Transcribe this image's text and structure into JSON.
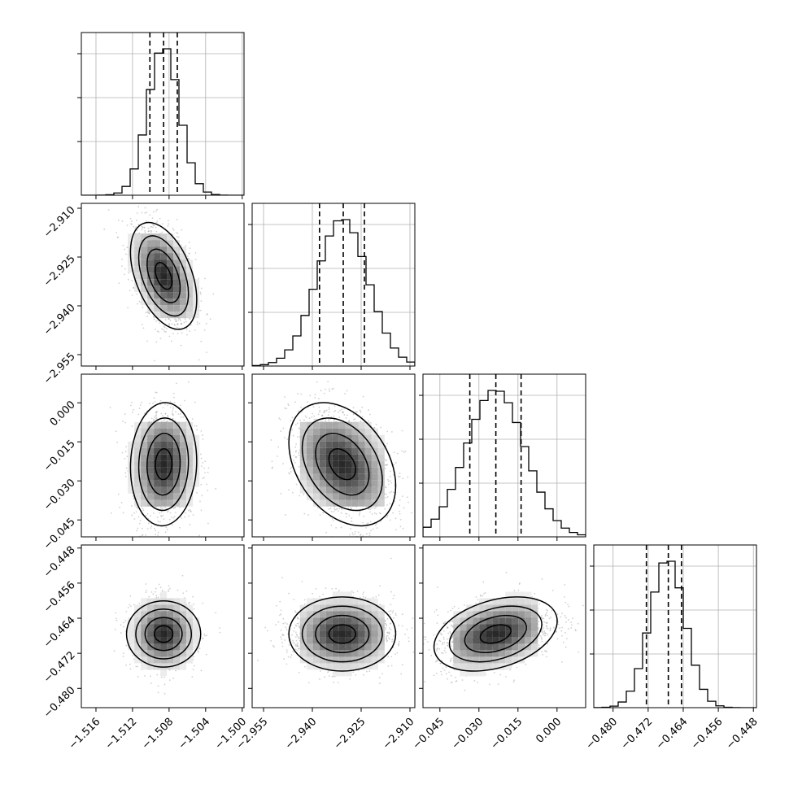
{
  "chart_data": {
    "type": "corner",
    "parameters": [
      {
        "range": [
          -1.5176,
          -1.4998
        ],
        "ticks": [
          -1.516,
          -1.512,
          -1.508,
          -1.504,
          -1.5
        ],
        "tick_labels": [
          "−1.516",
          "−1.512",
          "−1.508",
          "−1.504",
          "−1.500"
        ],
        "quantiles": [
          -1.5101,
          -1.5086,
          -1.5071
        ],
        "mean": -1.5086,
        "sd": 0.0015
      },
      {
        "range": [
          -2.9585,
          -2.9085
        ],
        "ticks": [
          -2.955,
          -2.94,
          -2.925,
          -2.91
        ],
        "tick_labels": [
          "−2.955",
          "−2.940",
          "−2.925",
          "−2.910"
        ],
        "quantiles": [
          -2.9378,
          -2.9305,
          -2.924
        ],
        "mean": -2.9308,
        "sd": 0.0068
      },
      {
        "range": [
          -0.0515,
          0.011
        ],
        "ticks": [
          -0.045,
          -0.03,
          -0.015,
          0.0
        ],
        "tick_labels": [
          "−0.045",
          "−0.030",
          "−0.015",
          "0.000"
        ],
        "quantiles": [
          -0.0335,
          -0.0235,
          -0.0138
        ],
        "mean": -0.0236,
        "sd": 0.0098
      },
      {
        "range": [
          -0.4844,
          -0.4473
        ],
        "ticks": [
          -0.48,
          -0.472,
          -0.464,
          -0.456,
          -0.448
        ],
        "tick_labels": [
          "−0.480",
          "−0.472",
          "−0.464",
          "−0.456",
          "−0.448"
        ],
        "quantiles": [
          -0.4724,
          -0.4674,
          -0.4644
        ],
        "mean": -0.4676,
        "sd": 0.0035
      }
    ],
    "correlations": [
      [
        1.0,
        -0.45,
        0.05,
        0.0
      ],
      [
        -0.45,
        1.0,
        -0.35,
        0.0
      ],
      [
        0.05,
        -0.35,
        1.0,
        0.35
      ],
      [
        0.0,
        0.0,
        0.35,
        1.0
      ]
    ],
    "histogram_bins": 20,
    "contour_levels_sigma": [
      0.5,
      1.0,
      1.5,
      2.0
    ],
    "grid": true
  }
}
